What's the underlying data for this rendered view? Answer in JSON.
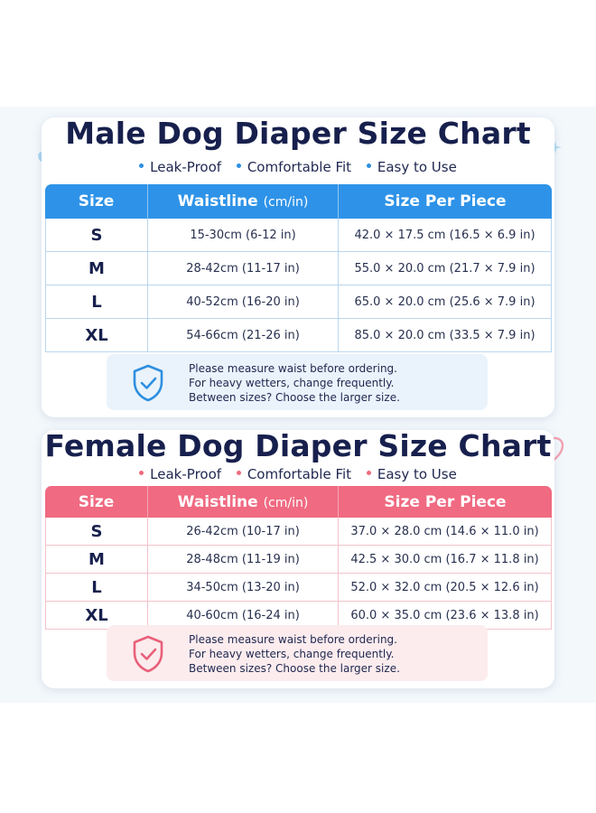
{
  "male": {
    "title": "Male Dog Diaper Size Chart",
    "features": [
      "Leak-Proof",
      "Comfortable Fit",
      "Easy to Use"
    ],
    "headers": {
      "size": "Size",
      "waist": "Waistline",
      "waist_unit": "(cm/in)",
      "piece": "Size Per Piece"
    },
    "rows": [
      {
        "size": "S",
        "waist": "15-30cm (6-12 in)",
        "piece": "42.0 × 17.5 cm (16.5 × 6.9 in)"
      },
      {
        "size": "M",
        "waist": "28-42cm (11-17 in)",
        "piece": "55.0 × 20.0 cm (21.7 × 7.9 in)"
      },
      {
        "size": "L",
        "waist": "40-52cm (16-20 in)",
        "piece": "65.0 × 20.0 cm (25.6 × 7.9 in)"
      },
      {
        "size": "XL",
        "waist": "54-66cm (21-26 in)",
        "piece": "85.0 × 20.0 cm (33.5 × 7.9 in)"
      }
    ],
    "note": [
      "Please measure waist before ordering.",
      "For heavy wetters, change frequently.",
      "Between sizes? Choose the larger size."
    ]
  },
  "female": {
    "title": "Female Dog Diaper Size Chart",
    "features": [
      "Leak-Proof",
      "Comfortable Fit",
      "Easy to Use"
    ],
    "headers": {
      "size": "Size",
      "waist": "Waistline",
      "waist_unit": "(cm/in)",
      "piece": "Size Per Piece"
    },
    "rows": [
      {
        "size": "S",
        "waist": "26-42cm (10-17 in)",
        "piece": "37.0 × 28.0 cm (14.6 × 11.0 in)"
      },
      {
        "size": "M",
        "waist": "28-48cm (11-19 in)",
        "piece": "42.5 × 30.0 cm (16.7 × 11.8 in)"
      },
      {
        "size": "L",
        "waist": "34-50cm (13-20 in)",
        "piece": "52.0 × 32.0 cm (20.5 × 12.6 in)"
      },
      {
        "size": "XL",
        "waist": "40-60cm (16-24 in)",
        "piece": "60.0 × 35.0 cm (23.6 × 13.8 in)"
      }
    ],
    "note": [
      "Please measure waist before ordering.",
      "For heavy wetters, change frequently.",
      "Between sizes? Choose the larger size."
    ]
  },
  "colors": {
    "male_accent": "#2e93e8",
    "female_accent": "#f06a81",
    "title": "#17204d"
  },
  "icons": [
    "paw-print-icon",
    "sparkle-icon",
    "heart-icon",
    "shield-check-icon"
  ]
}
